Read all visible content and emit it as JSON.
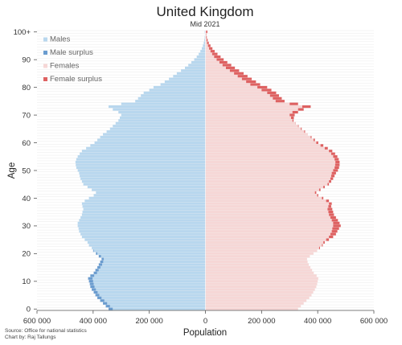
{
  "chart_data": {
    "type": "population pyramid (horizontal bar)",
    "title": "United Kingdom",
    "subtitle": "Mid 2021",
    "xlabel": "Population",
    "ylabel": "Age",
    "xlim": [
      -600000,
      600000
    ],
    "ylim": [
      0,
      100
    ],
    "x_ticks": [
      "600 000",
      "400 000",
      "200 000",
      "0",
      "200 000",
      "400 000",
      "600 000"
    ],
    "y_ticks": [
      "0",
      "10",
      "20",
      "30",
      "40",
      "50",
      "60",
      "70",
      "80",
      "90",
      "100+"
    ],
    "legend": [
      "Males",
      "Male surplus",
      "Females",
      "Female surplus"
    ],
    "legend_position": "top-left",
    "colors": {
      "males": "#b8d7ee",
      "male_surplus": "#6a9ccf",
      "females": "#f6d7d6",
      "female_surplus": "#de6161"
    },
    "ages": [
      0,
      1,
      2,
      3,
      4,
      5,
      6,
      7,
      8,
      9,
      10,
      11,
      12,
      13,
      14,
      15,
      16,
      17,
      18,
      19,
      20,
      21,
      22,
      23,
      24,
      25,
      26,
      27,
      28,
      29,
      30,
      31,
      32,
      33,
      34,
      35,
      36,
      37,
      38,
      39,
      40,
      41,
      42,
      43,
      44,
      45,
      46,
      47,
      48,
      49,
      50,
      51,
      52,
      53,
      54,
      55,
      56,
      57,
      58,
      59,
      60,
      61,
      62,
      63,
      64,
      65,
      66,
      67,
      68,
      69,
      70,
      71,
      72,
      73,
      74,
      75,
      76,
      77,
      78,
      79,
      80,
      81,
      82,
      83,
      84,
      85,
      86,
      87,
      88,
      89,
      90,
      91,
      92,
      93,
      94,
      95,
      96,
      97,
      98,
      99,
      100
    ],
    "series": [
      {
        "name": "Males",
        "values": [
          345000,
          355000,
          365000,
          375000,
          385000,
          392000,
          398000,
          405000,
          410000,
          412000,
          415000,
          418000,
          410000,
          398000,
          392000,
          385000,
          380000,
          375000,
          370000,
          380000,
          390000,
          400000,
          405000,
          415000,
          420000,
          430000,
          440000,
          445000,
          450000,
          452000,
          455000,
          455000,
          450000,
          445000,
          440000,
          438000,
          435000,
          438000,
          440000,
          430000,
          415000,
          398000,
          390000,
          405000,
          420000,
          435000,
          440000,
          445000,
          448000,
          450000,
          455000,
          460000,
          462000,
          463000,
          460000,
          455000,
          448000,
          440000,
          425000,
          410000,
          395000,
          385000,
          375000,
          365000,
          352000,
          340000,
          330000,
          320000,
          310000,
          305000,
          300000,
          310000,
          330000,
          345000,
          300000,
          250000,
          240000,
          230000,
          220000,
          200000,
          185000,
          160000,
          145000,
          130000,
          115000,
          102000,
          87000,
          73000,
          61000,
          50000,
          40000,
          31000,
          24000,
          18000,
          13000,
          9000,
          6000,
          4000,
          2800,
          1800,
          2500
        ]
      },
      {
        "name": "Females",
        "values": [
          330000,
          340000,
          350000,
          360000,
          370000,
          378000,
          384000,
          390000,
          395000,
          398000,
          400000,
          402000,
          396000,
          386000,
          380000,
          374000,
          368000,
          364000,
          362000,
          372000,
          385000,
          398000,
          408000,
          418000,
          425000,
          440000,
          455000,
          465000,
          470000,
          476000,
          482000,
          478000,
          472000,
          465000,
          458000,
          455000,
          452000,
          448000,
          450000,
          440000,
          420000,
          402000,
          395000,
          410000,
          425000,
          440000,
          448000,
          455000,
          460000,
          465000,
          472000,
          476000,
          478000,
          478000,
          475000,
          470000,
          462000,
          452000,
          436000,
          420000,
          402000,
          390000,
          378000,
          365000,
          355000,
          343000,
          332000,
          321000,
          314000,
          315000,
          318000,
          330000,
          350000,
          375000,
          330000,
          282000,
          272000,
          262000,
          252000,
          235000,
          220000,
          195000,
          180000,
          165000,
          150000,
          136000,
          120000,
          105000,
          92000,
          78000,
          65000,
          54000,
          43000,
          33000,
          25000,
          18000,
          12000,
          8000,
          5000,
          3000,
          7000
        ]
      }
    ],
    "source_lines": [
      "Source: Office for national statistics",
      "Chart by: Raj Tallungs"
    ]
  }
}
